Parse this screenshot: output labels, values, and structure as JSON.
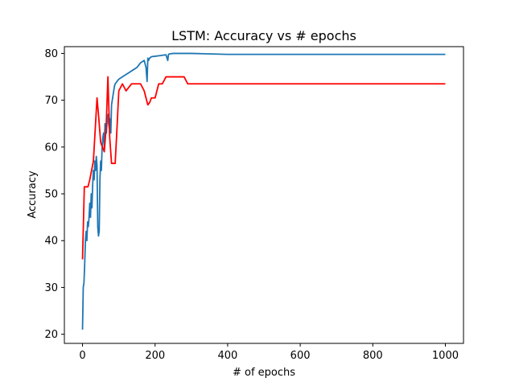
{
  "chart_data": {
    "type": "line",
    "title": "LSTM: Accuracy vs # epochs",
    "xlabel": "# of epochs",
    "ylabel": "Accuracy",
    "xlim": [
      -50,
      1050
    ],
    "ylim": [
      18.05,
      81.45
    ],
    "xticks": [
      0,
      200,
      400,
      600,
      800,
      1000
    ],
    "yticks": [
      20,
      30,
      40,
      50,
      60,
      70,
      80
    ],
    "grid": false,
    "legend": "none",
    "series": [
      {
        "color": "#1f77b4",
        "x": [
          0,
          2,
          4,
          6,
          8,
          10,
          12,
          14,
          16,
          18,
          20,
          22,
          24,
          26,
          28,
          30,
          32,
          34,
          36,
          38,
          40,
          42,
          44,
          46,
          48,
          50,
          52,
          54,
          56,
          58,
          60,
          62,
          64,
          66,
          68,
          70,
          72,
          74,
          76,
          78,
          80,
          82,
          84,
          86,
          88,
          90,
          95,
          100,
          110,
          120,
          130,
          140,
          150,
          160,
          170,
          175,
          178,
          180,
          182,
          185,
          190,
          200,
          210,
          220,
          230,
          235,
          237,
          240,
          250,
          260,
          280,
          300,
          350,
          400,
          500,
          600,
          700,
          800,
          900,
          1000
        ],
        "y": [
          21,
          30,
          31,
          35,
          40,
          42,
          40,
          44,
          43,
          45,
          48,
          45,
          50,
          47,
          52,
          55,
          53,
          57,
          55,
          58,
          56,
          43,
          41,
          42,
          53,
          57,
          55,
          60,
          62,
          63,
          60,
          65,
          64,
          63,
          66,
          67,
          65,
          64,
          66,
          63,
          69,
          70,
          71,
          72,
          73,
          73.5,
          74,
          74.5,
          75,
          75.5,
          76,
          76.5,
          77,
          78,
          78.5,
          77,
          74,
          79,
          78.5,
          79,
          79.3,
          79.4,
          79.5,
          79.6,
          79.7,
          78.5,
          79.8,
          79.9,
          80,
          80,
          80,
          80,
          79.9,
          79.8,
          79.8,
          79.8,
          79.8,
          79.8,
          79.8,
          79.8
        ]
      },
      {
        "color": "#ff0000",
        "x": [
          0,
          5,
          15,
          20,
          30,
          40,
          45,
          50,
          55,
          60,
          65,
          70,
          75,
          80,
          85,
          90,
          95,
          100,
          110,
          120,
          125,
          135,
          145,
          160,
          170,
          175,
          180,
          185,
          190,
          195,
          200,
          210,
          220,
          230,
          240,
          250,
          260,
          270,
          280,
          290,
          300,
          400,
          500,
          600,
          700,
          800,
          900,
          1000
        ],
        "y": [
          36,
          51.5,
          51.5,
          53,
          57,
          70.5,
          66,
          61,
          60,
          59,
          64,
          75,
          62,
          56.5,
          56.5,
          56.5,
          64,
          72,
          73.5,
          72,
          72.5,
          73.5,
          73.5,
          73.5,
          72,
          70.5,
          69,
          69.5,
          70.5,
          70.5,
          70.5,
          73.5,
          73.5,
          75,
          75,
          75,
          75,
          75,
          75,
          73.5,
          73.5,
          73.5,
          73.5,
          73.5,
          73.5,
          73.5,
          73.5,
          73.5
        ]
      }
    ]
  }
}
